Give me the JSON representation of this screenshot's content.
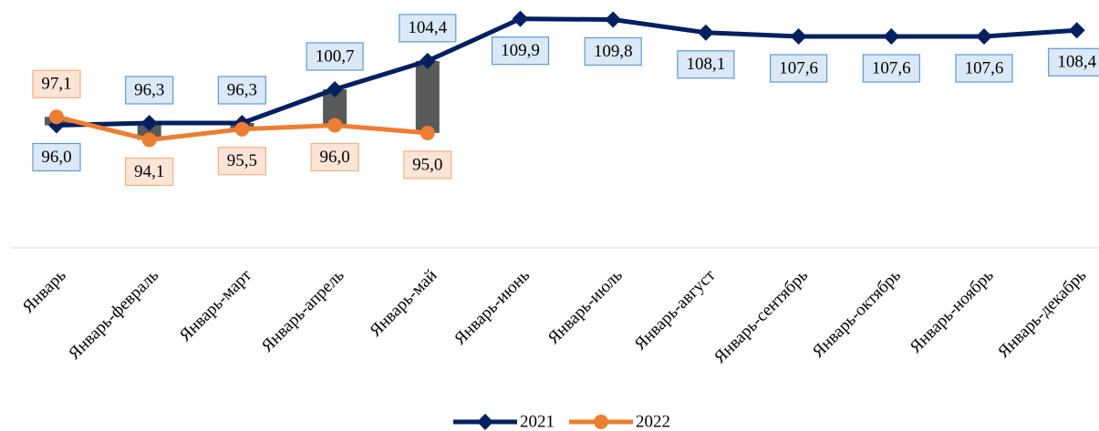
{
  "chart_data": {
    "type": "line",
    "categories": [
      "Январь",
      "Январь-февраль",
      "Январь-март",
      "Январь-апрель",
      "Январь-май",
      "Январь-июнь",
      "Январь-июль",
      "Январь-август",
      "Январь-сентябрь",
      "Январь-октябрь",
      "Январь-ноябрь",
      "Январь-декабрь"
    ],
    "series": [
      {
        "name": "2021",
        "color": "#002060",
        "values": [
          96.0,
          96.3,
          96.3,
          100.7,
          104.4,
          109.9,
          109.8,
          108.1,
          107.6,
          107.6,
          107.6,
          108.4
        ],
        "value_labels": [
          "96,0",
          "96,3",
          "96,3",
          "100,7",
          "104,4",
          "109,9",
          "109,8",
          "108,1",
          "107,6",
          "107,6",
          "107,6",
          "108,4"
        ]
      },
      {
        "name": "2022",
        "color": "#ed7d31",
        "values": [
          97.1,
          94.1,
          95.5,
          96.0,
          95.0,
          null,
          null,
          null,
          null,
          null,
          null,
          null
        ],
        "value_labels": [
          "97,1",
          "94,1",
          "95,5",
          "96,0",
          "95,0",
          null,
          null,
          null,
          null,
          null,
          null,
          null
        ]
      }
    ],
    "ylim": [
      80,
      112
    ],
    "hi_lo_color": "#595959"
  }
}
